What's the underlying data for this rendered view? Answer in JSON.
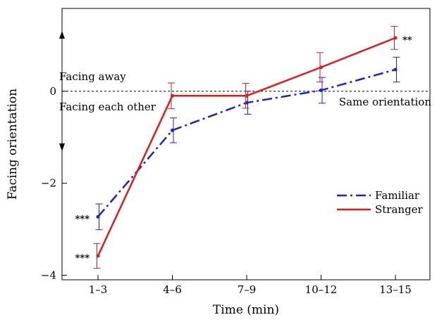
{
  "chart_data": {
    "type": "line",
    "categories": [
      "1–3",
      "4–6",
      "7–9",
      "10–12",
      "13–15"
    ],
    "xlabel": "Time (min)",
    "ylabel": "Facing orientation",
    "ylim": [
      -4.1,
      1.8
    ],
    "yticks": [
      "−4",
      "−2",
      "0"
    ],
    "ytick_values": [
      -4,
      -2,
      0
    ],
    "grid": false,
    "legend_position": "right",
    "reference_line": {
      "y": 0,
      "style": "dashed",
      "label": "Same orientation"
    },
    "annotations": {
      "facing_away": "Facing away",
      "facing_each_other": "Facing each other"
    },
    "series": [
      {
        "name": "Familiar",
        "color": "#1f1fd6",
        "style": "dashdot",
        "values": [
          -2.73,
          -0.85,
          -0.25,
          0.02,
          0.47
        ],
        "errors": [
          0.28,
          0.27,
          0.25,
          0.28,
          0.27
        ],
        "significance": [
          "***",
          "",
          "",
          "",
          ""
        ]
      },
      {
        "name": "Stranger",
        "color": "#e31a1c",
        "style": "solid",
        "values": [
          -3.58,
          -0.1,
          -0.1,
          0.52,
          1.16
        ],
        "errors": [
          0.27,
          0.28,
          0.27,
          0.32,
          0.25
        ],
        "significance": [
          "***",
          "",
          "",
          "",
          "**"
        ]
      }
    ]
  }
}
